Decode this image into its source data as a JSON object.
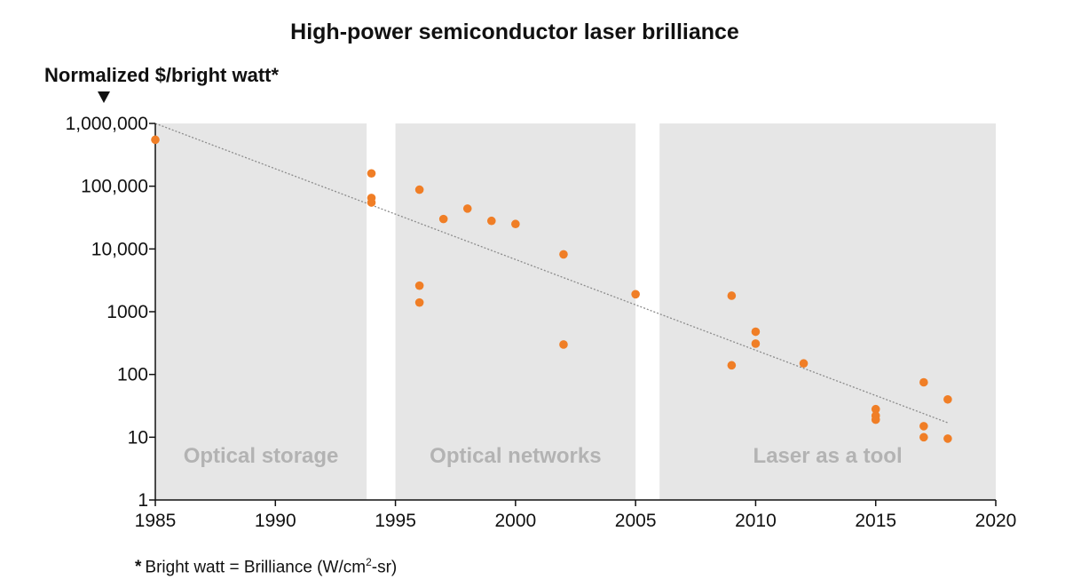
{
  "chart_data": {
    "type": "scatter",
    "title": "High-power semiconductor laser brilliance",
    "ylabel": "Normalized $/bright watt*",
    "xlabel": "",
    "yscale": "log",
    "xlim": [
      1985,
      2020
    ],
    "ylim": [
      1,
      1000000
    ],
    "x_ticks": [
      1985,
      1990,
      1995,
      2000,
      2005,
      2010,
      2015,
      2020
    ],
    "x_tick_labels": [
      "1985",
      "1990",
      "1995",
      "2000",
      "2005",
      "2010",
      "2015",
      "2020"
    ],
    "y_ticks": [
      1,
      10,
      100,
      1000,
      10000,
      100000,
      1000000
    ],
    "y_tick_labels": [
      "1",
      "10",
      "100",
      "1000",
      "10,000",
      "100,000",
      "1,000,000"
    ],
    "regions": [
      {
        "label": "Optical storage",
        "x_start": 1985,
        "x_end": 1993.8
      },
      {
        "label": "Optical networks",
        "x_start": 1995,
        "x_end": 2005
      },
      {
        "label": "Laser as a tool",
        "x_start": 2006,
        "x_end": 2020
      }
    ],
    "trendline": {
      "x": [
        1985,
        2018
      ],
      "y": [
        1000000,
        17
      ],
      "style": "dotted"
    },
    "points": [
      {
        "x": 1985,
        "y": 550000
      },
      {
        "x": 1994,
        "y": 160000
      },
      {
        "x": 1994,
        "y": 65000
      },
      {
        "x": 1994,
        "y": 55000
      },
      {
        "x": 1996,
        "y": 88000
      },
      {
        "x": 1997,
        "y": 30000
      },
      {
        "x": 1998,
        "y": 44000
      },
      {
        "x": 1999,
        "y": 28000
      },
      {
        "x": 2000,
        "y": 25000
      },
      {
        "x": 1996,
        "y": 2600
      },
      {
        "x": 1996,
        "y": 1400
      },
      {
        "x": 2002,
        "y": 8200
      },
      {
        "x": 2002,
        "y": 300
      },
      {
        "x": 2005,
        "y": 1900
      },
      {
        "x": 2009,
        "y": 1800
      },
      {
        "x": 2009,
        "y": 140
      },
      {
        "x": 2010,
        "y": 480
      },
      {
        "x": 2010,
        "y": 310
      },
      {
        "x": 2012,
        "y": 150
      },
      {
        "x": 2015,
        "y": 28
      },
      {
        "x": 2015,
        "y": 22
      },
      {
        "x": 2015,
        "y": 19
      },
      {
        "x": 2017,
        "y": 75
      },
      {
        "x": 2017,
        "y": 15
      },
      {
        "x": 2017,
        "y": 10
      },
      {
        "x": 2018,
        "y": 40
      },
      {
        "x": 2018,
        "y": 9.5
      }
    ],
    "colors": {
      "points": "#f07e26",
      "background": "#e6e6e6",
      "trendline": "#8c8c8c",
      "region_text": "#b3b3b3"
    },
    "grid": false,
    "footnote_prefix": "*",
    "footnote_text": "Bright watt = Brilliance (W/cm",
    "footnote_sup": "2",
    "footnote_suffix": "-sr)"
  }
}
